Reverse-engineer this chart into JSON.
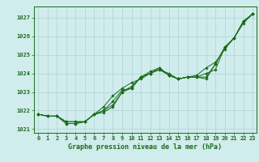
{
  "bg_color": "#d0ecec",
  "grid_color": "#b0d4d4",
  "line_color": "#1a6b1a",
  "title": "Graphe pression niveau de la mer (hPa)",
  "xlim": [
    -0.5,
    23.4
  ],
  "ylim": [
    1020.8,
    1027.6
  ],
  "yticks": [
    1021,
    1022,
    1023,
    1024,
    1025,
    1026,
    1027
  ],
  "xticks": [
    0,
    1,
    2,
    3,
    4,
    5,
    6,
    7,
    8,
    9,
    10,
    11,
    12,
    13,
    14,
    15,
    16,
    17,
    18,
    19,
    20,
    21,
    22,
    23
  ],
  "series1": [
    1021.8,
    1021.7,
    1021.7,
    1021.4,
    1021.4,
    1021.4,
    1021.8,
    1021.9,
    1022.2,
    1023.0,
    1023.2,
    1023.8,
    1024.0,
    1024.2,
    1023.9,
    1023.7,
    1023.8,
    1023.8,
    1023.7,
    1024.5,
    1025.4,
    1025.9,
    1026.8,
    1027.2
  ],
  "series2": [
    1021.8,
    1021.7,
    1021.7,
    1021.4,
    1021.4,
    1021.4,
    1021.8,
    1022.0,
    1022.5,
    1023.1,
    1023.2,
    1023.8,
    1024.1,
    1024.3,
    1023.9,
    1023.7,
    1023.8,
    1023.8,
    1024.0,
    1024.2,
    1025.4,
    1025.9,
    1026.8,
    1027.2
  ],
  "series3": [
    1021.8,
    1021.7,
    1021.7,
    1021.3,
    1021.3,
    1021.4,
    1021.8,
    1022.2,
    1022.8,
    1023.2,
    1023.5,
    1023.7,
    1024.0,
    1024.2,
    1024.0,
    1023.7,
    1023.8,
    1023.9,
    1024.3,
    1024.6,
    1025.3,
    1025.9,
    1026.7,
    1027.2
  ],
  "series4": [
    1021.8,
    1021.7,
    1021.7,
    1021.3,
    1021.3,
    1021.4,
    1021.8,
    1022.0,
    1022.3,
    1023.0,
    1023.3,
    1023.8,
    1024.0,
    1024.3,
    1023.9,
    1023.7,
    1023.8,
    1023.8,
    1023.8,
    1024.5,
    1025.4,
    1025.9,
    1026.8,
    1027.2
  ],
  "title_fontsize": 6,
  "tick_fontsize": 5
}
